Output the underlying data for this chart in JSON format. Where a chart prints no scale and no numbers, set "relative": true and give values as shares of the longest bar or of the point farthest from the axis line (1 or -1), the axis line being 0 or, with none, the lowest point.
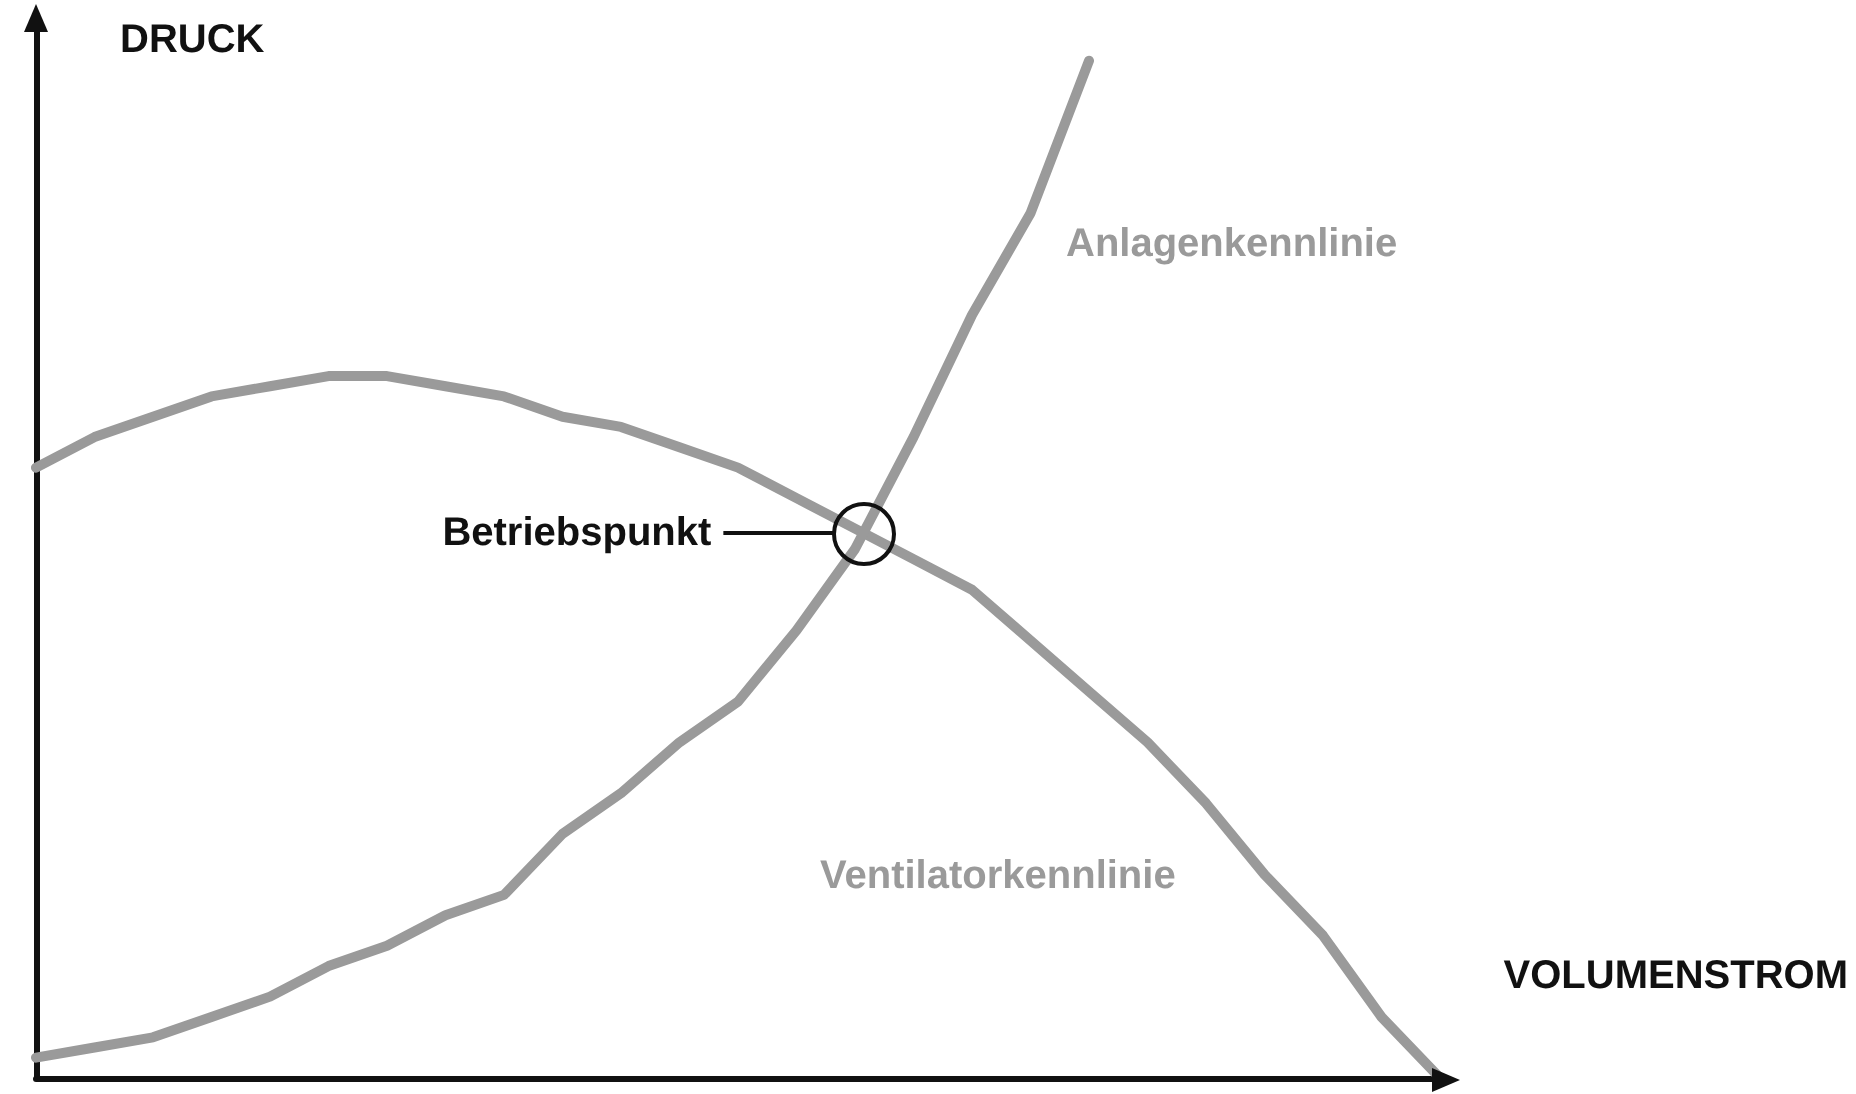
{
  "chart_data": {
    "type": "line",
    "relative": true,
    "xlabel": "VOLUMENSTROM",
    "ylabel": "DRUCK",
    "grid": false,
    "legend": false,
    "marker": "none",
    "line_style": "solid",
    "categories": [
      null,
      null,
      null,
      null,
      null,
      null,
      null,
      null,
      null,
      null,
      null,
      null,
      null,
      null,
      null,
      null,
      null,
      null,
      null,
      null,
      null,
      null,
      null,
      null,
      null
    ],
    "series": [
      {
        "name": "Ventilatorkennlinie",
        "color": "#9a9a9a",
        "values": [
          0.6,
          0.63,
          0.65,
          0.67,
          0.68,
          0.69,
          0.69,
          0.68,
          0.67,
          0.65,
          0.64,
          0.62,
          0.6,
          0.57,
          0.54,
          0.51,
          0.48,
          0.43,
          0.38,
          0.33,
          0.27,
          0.2,
          0.14,
          0.06,
          0
        ]
      },
      {
        "name": "Anlagenkennlinie",
        "color": "#9a9a9a",
        "values": [
          0.02,
          0.03,
          0.04,
          0.06,
          0.08,
          0.11,
          0.13,
          0.16,
          0.18,
          0.24,
          0.28,
          0.33,
          0.37,
          0.44,
          0.52,
          0.63,
          0.75,
          0.85,
          1,
          null,
          null,
          null,
          null,
          null,
          null
        ]
      }
    ],
    "annotations": [
      "Betriebspunkt"
    ]
  }
}
